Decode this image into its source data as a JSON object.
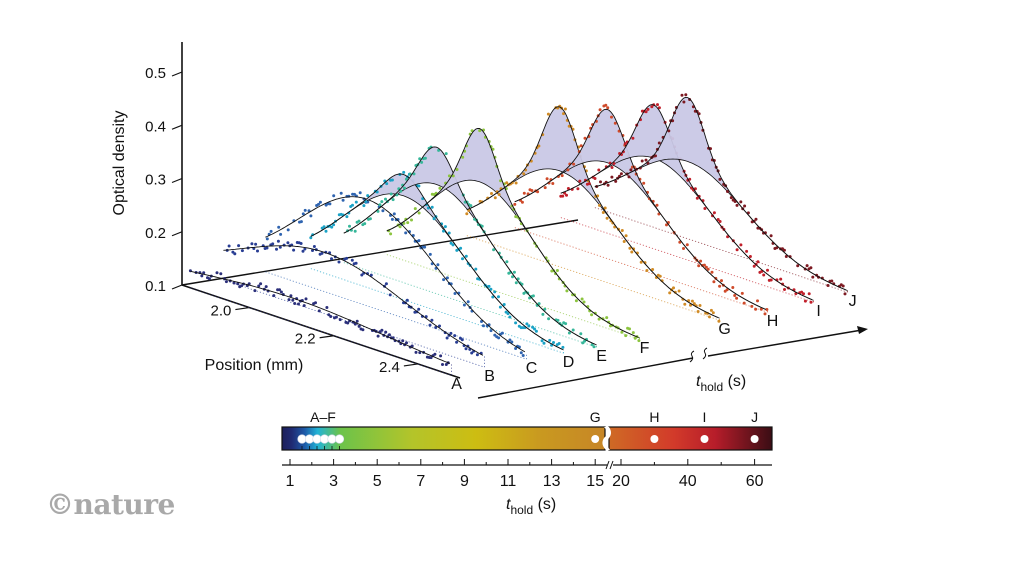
{
  "logo": "©nature",
  "chart_data": {
    "type": "line",
    "subtype": "3d-waterfall",
    "title": "",
    "ylabel": "Optical density",
    "xlabel": "Position (mm)",
    "zlabel": {
      "main": "t",
      "sub": "hold",
      "unit": " (s)"
    },
    "ylim": [
      0.1,
      0.5
    ],
    "yticks": [
      "0.1",
      "0.2",
      "0.3",
      "0.4",
      "0.5"
    ],
    "xticks": [
      "2.0",
      "2.2",
      "2.4"
    ],
    "xlim": [
      1.84,
      2.5
    ],
    "grid": false,
    "series": [
      {
        "name": "A",
        "t_hold": 1.5,
        "color": "#2b2f7a",
        "base": 0.113,
        "peak": 0.145,
        "center": 2.1,
        "width": 0.14,
        "bimodal": 0.0
      },
      {
        "name": "B",
        "t_hold": 1.8,
        "color": "#283d93",
        "base": 0.105,
        "peak": 0.215,
        "center": 2.1,
        "width": 0.12,
        "bimodal": 0.0
      },
      {
        "name": "C",
        "t_hold": 2.2,
        "color": "#2f64b0",
        "base": 0.1,
        "peak": 0.3,
        "center": 2.1,
        "width": 0.1,
        "bimodal": 0.0
      },
      {
        "name": "D",
        "t_hold": 2.5,
        "color": "#1aa2c6",
        "base": 0.1,
        "peak": 0.335,
        "center": 2.1,
        "width": 0.09,
        "bimodal": 0.04
      },
      {
        "name": "E",
        "t_hold": 2.9,
        "color": "#36b79a",
        "base": 0.1,
        "peak": 0.375,
        "center": 2.1,
        "width": 0.085,
        "bimodal": 0.07
      },
      {
        "name": "F",
        "t_hold": 3.3,
        "color": "#8cc43f",
        "base": 0.1,
        "peak": 0.395,
        "center": 2.1,
        "width": 0.08,
        "bimodal": 0.1
      },
      {
        "name": "G",
        "t_hold": 15,
        "color": "#d18b25",
        "base": 0.1,
        "peak": 0.4,
        "center": 2.1,
        "width": 0.085,
        "bimodal": 0.12
      },
      {
        "name": "H",
        "t_hold": 30,
        "color": "#cf4a2a",
        "base": 0.1,
        "peak": 0.38,
        "center": 2.1,
        "width": 0.085,
        "bimodal": 0.1
      },
      {
        "name": "I",
        "t_hold": 45,
        "color": "#c1202b",
        "base": 0.1,
        "peak": 0.37,
        "center": 2.1,
        "width": 0.085,
        "bimodal": 0.1
      },
      {
        "name": "J",
        "t_hold": 60,
        "color": "#7d1a22",
        "base": 0.1,
        "peak": 0.365,
        "center": 2.1,
        "width": 0.085,
        "bimodal": 0.12
      }
    ],
    "colorbar": {
      "group_label": "A–F",
      "ticks_left": [
        "1",
        "3",
        "5",
        "7",
        "9",
        "11",
        "13",
        "15"
      ],
      "ticks_right": [
        "20",
        "40",
        "60"
      ],
      "markers": [
        {
          "label": "",
          "t_hold": 1.5
        },
        {
          "label": "",
          "t_hold": 1.8
        },
        {
          "label": "",
          "t_hold": 2.2
        },
        {
          "label": "",
          "t_hold": 2.5
        },
        {
          "label": "",
          "t_hold": 2.9
        },
        {
          "label": "",
          "t_hold": 3.3
        },
        {
          "label": "G",
          "t_hold": 15
        },
        {
          "label": "H",
          "t_hold": 30
        },
        {
          "label": "I",
          "t_hold": 45
        },
        {
          "label": "J",
          "t_hold": 60
        }
      ],
      "xlabel": {
        "main": "t",
        "sub": "hold",
        "unit": " (s)"
      }
    },
    "highlight_fill": "#c9c8e6"
  }
}
